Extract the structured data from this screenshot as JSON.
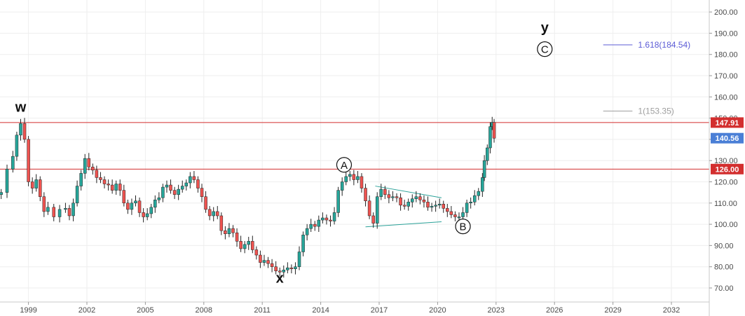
{
  "chart_data": {
    "type": "candlestick",
    "x_ticks": [
      "1999",
      "2002",
      "2005",
      "2008",
      "2011",
      "2014",
      "2017",
      "2020",
      "2023",
      "2026",
      "2029",
      "2032"
    ],
    "y_ticks": [
      "70.00",
      "80.00",
      "90.00",
      "100.00",
      "110.00",
      "120.00",
      "130.00",
      "140.00",
      "150.00",
      "160.00",
      "170.00",
      "180.00",
      "190.00",
      "200.00"
    ],
    "ylim": [
      64,
      202
    ],
    "xlim": [
      1997.5,
      2034.5
    ],
    "grid": true,
    "colors": {
      "up": "#26a69a",
      "down": "#ef5350",
      "wick": "#222222",
      "hline": "#d32f2f",
      "price_badge": "#4a7fd6",
      "triangle": "#2aa198",
      "fib_1": "#9e9e9e",
      "fib_1618": "#5b5bd6"
    },
    "horizontal_lines": [
      {
        "value": 147.91,
        "label": "147.91"
      },
      {
        "value": 126.0,
        "label": "126.00"
      }
    ],
    "last_price": {
      "value": 140.56,
      "label": "140.56"
    },
    "fib_levels": [
      {
        "label": "1(153.35)",
        "value": 153.35,
        "x_start": 2028.5,
        "x_end": 2030.0
      },
      {
        "label": "1.618(184.54)",
        "value": 184.54,
        "x_start": 2028.5,
        "x_end": 2030.0
      }
    ],
    "wave_labels": [
      {
        "text": "w",
        "x": 1998.6,
        "y": 153.0,
        "circled": false
      },
      {
        "text": "x",
        "x": 2011.9,
        "y": 72.5,
        "circled": false
      },
      {
        "text": "y",
        "x": 2025.5,
        "y": 190.5,
        "circled": false
      },
      {
        "text": "A",
        "x": 2015.2,
        "y": 128.0,
        "circled": true
      },
      {
        "text": "B",
        "x": 2021.3,
        "y": 99.0,
        "circled": true
      },
      {
        "text": "C",
        "x": 2025.5,
        "y": 182.5,
        "circled": true
      }
    ],
    "triangle": [
      {
        "x1": 2016.8,
        "y1": 118.0,
        "x2": 2020.2,
        "y2": 112.5
      },
      {
        "x1": 2016.3,
        "y1": 98.8,
        "x2": 2020.2,
        "y2": 101.2
      }
    ],
    "series": [
      {
        "type": "candlestick",
        "points": [
          [
            1997.6,
            115.0
          ],
          [
            1997.9,
            126.0
          ],
          [
            1998.2,
            132.0
          ],
          [
            1998.4,
            142.0
          ],
          [
            1998.6,
            147.5
          ],
          [
            1998.8,
            140.0
          ],
          [
            1999.0,
            120.0
          ],
          [
            1999.2,
            117.0
          ],
          [
            1999.4,
            121.0
          ],
          [
            1999.6,
            113.0
          ],
          [
            1999.8,
            106.0
          ],
          [
            2000.0,
            108.0
          ],
          [
            2000.3,
            103.5
          ],
          [
            2000.6,
            107.0
          ],
          [
            2000.9,
            107.5
          ],
          [
            2001.1,
            104.0
          ],
          [
            2001.3,
            110.0
          ],
          [
            2001.5,
            118.0
          ],
          [
            2001.7,
            124.0
          ],
          [
            2001.9,
            131.0
          ],
          [
            2002.1,
            127.0
          ],
          [
            2002.3,
            125.5
          ],
          [
            2002.5,
            122.0
          ],
          [
            2002.7,
            121.0
          ],
          [
            2002.9,
            119.0
          ],
          [
            2003.1,
            118.5
          ],
          [
            2003.3,
            116.0
          ],
          [
            2003.5,
            119.0
          ],
          [
            2003.7,
            116.0
          ],
          [
            2003.9,
            110.0
          ],
          [
            2004.1,
            107.0
          ],
          [
            2004.3,
            110.0
          ],
          [
            2004.5,
            111.0
          ],
          [
            2004.7,
            105.5
          ],
          [
            2004.9,
            103.5
          ],
          [
            2005.1,
            105.0
          ],
          [
            2005.3,
            108.0
          ],
          [
            2005.5,
            111.5
          ],
          [
            2005.7,
            112.5
          ],
          [
            2005.9,
            117.5
          ],
          [
            2006.1,
            118.5
          ],
          [
            2006.3,
            116.0
          ],
          [
            2006.5,
            114.0
          ],
          [
            2006.7,
            116.5
          ],
          [
            2006.9,
            118.0
          ],
          [
            2007.1,
            119.5
          ],
          [
            2007.3,
            122.5
          ],
          [
            2007.5,
            121.0
          ],
          [
            2007.7,
            117.0
          ],
          [
            2007.9,
            113.0
          ],
          [
            2008.1,
            107.0
          ],
          [
            2008.3,
            104.0
          ],
          [
            2008.5,
            106.0
          ],
          [
            2008.7,
            104.0
          ],
          [
            2008.9,
            97.0
          ],
          [
            2009.1,
            95.5
          ],
          [
            2009.3,
            98.0
          ],
          [
            2009.5,
            96.0
          ],
          [
            2009.7,
            92.0
          ],
          [
            2009.9,
            88.5
          ],
          [
            2010.1,
            90.5
          ],
          [
            2010.3,
            92.0
          ],
          [
            2010.5,
            88.0
          ],
          [
            2010.7,
            85.5
          ],
          [
            2010.9,
            82.0
          ],
          [
            2011.1,
            83.0
          ],
          [
            2011.3,
            81.5
          ],
          [
            2011.5,
            80.0
          ],
          [
            2011.7,
            78.0
          ],
          [
            2011.9,
            77.5
          ],
          [
            2012.1,
            78.5
          ],
          [
            2012.3,
            79.5
          ],
          [
            2012.5,
            79.0
          ],
          [
            2012.7,
            80.0
          ],
          [
            2012.9,
            87.0
          ],
          [
            2013.1,
            95.0
          ],
          [
            2013.3,
            98.0
          ],
          [
            2013.5,
            100.0
          ],
          [
            2013.7,
            99.0
          ],
          [
            2013.9,
            102.0
          ],
          [
            2014.1,
            103.0
          ],
          [
            2014.3,
            102.0
          ],
          [
            2014.5,
            101.5
          ],
          [
            2014.7,
            105.5
          ],
          [
            2014.9,
            116.0
          ],
          [
            2015.1,
            120.0
          ],
          [
            2015.3,
            122.5
          ],
          [
            2015.5,
            123.5
          ],
          [
            2015.7,
            121.0
          ],
          [
            2015.9,
            122.5
          ],
          [
            2016.1,
            117.0
          ],
          [
            2016.3,
            111.0
          ],
          [
            2016.5,
            104.0
          ],
          [
            2016.7,
            100.5
          ],
          [
            2016.9,
            113.0
          ],
          [
            2017.1,
            116.5
          ],
          [
            2017.3,
            114.0
          ],
          [
            2017.5,
            112.5
          ],
          [
            2017.7,
            113.0
          ],
          [
            2017.9,
            112.5
          ],
          [
            2018.1,
            109.0
          ],
          [
            2018.3,
            108.5
          ],
          [
            2018.5,
            110.5
          ],
          [
            2018.7,
            112.0
          ],
          [
            2018.9,
            113.0
          ],
          [
            2019.1,
            111.5
          ],
          [
            2019.3,
            110.5
          ],
          [
            2019.5,
            108.0
          ],
          [
            2019.7,
            108.5
          ],
          [
            2019.9,
            109.0
          ],
          [
            2020.1,
            109.5
          ],
          [
            2020.3,
            107.5
          ],
          [
            2020.5,
            106.0
          ],
          [
            2020.7,
            104.5
          ],
          [
            2020.9,
            103.5
          ],
          [
            2021.1,
            103.5
          ],
          [
            2021.3,
            105.5
          ],
          [
            2021.5,
            110.0
          ],
          [
            2021.7,
            110.5
          ],
          [
            2021.9,
            113.5
          ],
          [
            2022.1,
            115.5
          ],
          [
            2022.3,
            122.0
          ],
          [
            2022.4,
            130.0
          ],
          [
            2022.55,
            136.0
          ],
          [
            2022.7,
            146.0
          ],
          [
            2022.8,
            148.0
          ],
          [
            2022.9,
            140.56
          ]
        ]
      }
    ]
  }
}
